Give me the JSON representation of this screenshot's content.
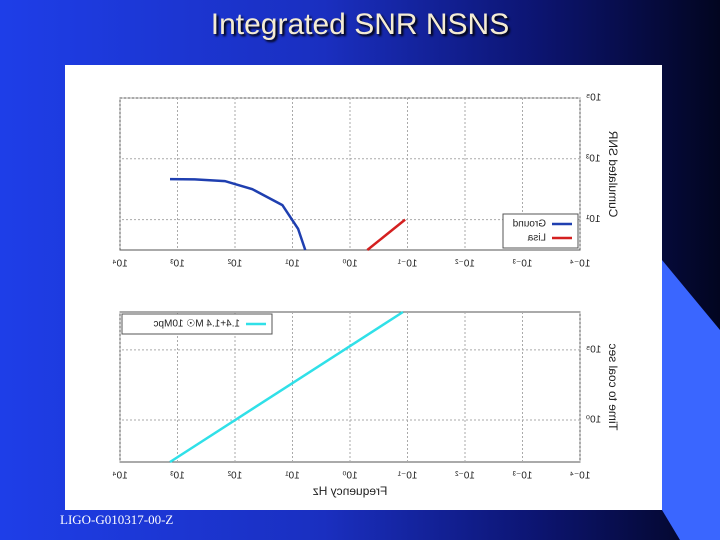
{
  "title": "Integrated SNR NSNS",
  "footer": "LIGO-G010317-00-Z",
  "chart_data": [
    {
      "type": "line",
      "mirrored": true,
      "log_x": true,
      "log_y": true,
      "grid": true,
      "legend": "lower right",
      "ylabel": "Cumulated SNR",
      "xlim": [
        0.0001,
        10000
      ],
      "xticks": [
        {
          "value": 0.0001,
          "label": "10⁻⁴"
        },
        {
          "value": 0.001,
          "label": "10⁻³"
        },
        {
          "value": 0.01,
          "label": "10⁻²"
        },
        {
          "value": 0.1,
          "label": "10⁻¹"
        },
        {
          "value": 1,
          "label": "10⁰"
        },
        {
          "value": 10,
          "label": "10¹"
        },
        {
          "value": 100,
          "label": "10²"
        },
        {
          "value": 1000,
          "label": "10³"
        },
        {
          "value": 10000,
          "label": "10⁴"
        }
      ],
      "ylim": [
        1,
        100000
      ],
      "yticks": [
        {
          "value": 10,
          "label": "10¹"
        },
        {
          "value": 1000,
          "label": "10³"
        },
        {
          "value": 100000,
          "label": "10⁵"
        }
      ],
      "series": [
        {
          "name": "Ground",
          "color": "#1f3fb0",
          "x": [
            1350,
            500,
            150,
            50,
            15,
            8,
            6
          ],
          "values": [
            215,
            210,
            185,
            100,
            30,
            5,
            1
          ]
        },
        {
          "name": "Lisa",
          "color": "#d42020",
          "x": [
            0.5,
            0.11
          ],
          "values": [
            1,
            10
          ]
        }
      ]
    },
    {
      "type": "line",
      "mirrored": true,
      "log_x": true,
      "log_y": true,
      "grid": true,
      "legend": "upper left",
      "xlabel": "Frequency Hz",
      "ylabel": "Time to coal sec",
      "xlim": [
        0.0001,
        10000
      ],
      "xticks": [
        {
          "value": 0.0001,
          "label": "10⁻⁴"
        },
        {
          "value": 0.001,
          "label": "10⁻³"
        },
        {
          "value": 0.01,
          "label": "10⁻²"
        },
        {
          "value": 0.1,
          "label": "10⁻¹"
        },
        {
          "value": 1,
          "label": "10⁰"
        },
        {
          "value": 10,
          "label": "10¹"
        },
        {
          "value": 100,
          "label": "10²"
        },
        {
          "value": 1000,
          "label": "10³"
        },
        {
          "value": 10000,
          "label": "10⁴"
        }
      ],
      "ylim": [
        0.001,
        50000000
      ],
      "yticks": [
        {
          "value": 1,
          "label": "10⁰"
        },
        {
          "value": 100000,
          "label": "10⁵"
        }
      ],
      "series": [
        {
          "name": "1.4+1.4 M☉ 10Mpc",
          "color": "#30e0e8",
          "x": [
            1350,
            0.12
          ],
          "values": [
            0.001,
            50000000
          ]
        }
      ]
    }
  ]
}
